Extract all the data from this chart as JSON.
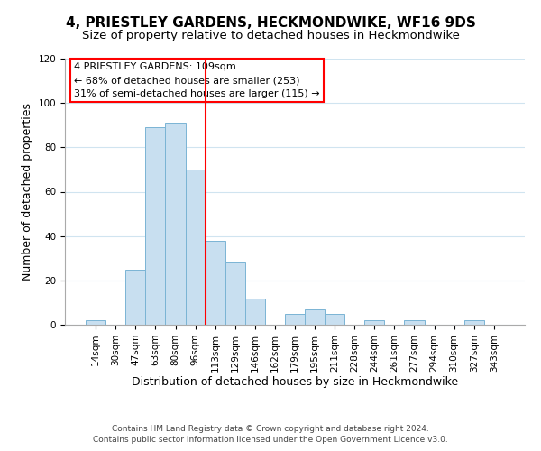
{
  "title": "4, PRIESTLEY GARDENS, HECKMONDWIKE, WF16 9DS",
  "subtitle": "Size of property relative to detached houses in Heckmondwike",
  "xlabel": "Distribution of detached houses by size in Heckmondwike",
  "ylabel": "Number of detached properties",
  "bar_labels": [
    "14sqm",
    "30sqm",
    "47sqm",
    "63sqm",
    "80sqm",
    "96sqm",
    "113sqm",
    "129sqm",
    "146sqm",
    "162sqm",
    "179sqm",
    "195sqm",
    "211sqm",
    "228sqm",
    "244sqm",
    "261sqm",
    "277sqm",
    "294sqm",
    "310sqm",
    "327sqm",
    "343sqm"
  ],
  "bar_values": [
    2,
    0,
    25,
    89,
    91,
    70,
    38,
    28,
    12,
    0,
    5,
    7,
    5,
    0,
    2,
    0,
    2,
    0,
    0,
    2,
    0
  ],
  "bar_color": "#c8dff0",
  "bar_edgecolor": "#7ab4d4",
  "highlight_index": 6,
  "ylim": [
    0,
    120
  ],
  "yticks": [
    0,
    20,
    40,
    60,
    80,
    100,
    120
  ],
  "annotation_title": "4 PRIESTLEY GARDENS: 109sqm",
  "annotation_line1": "← 68% of detached houses are smaller (253)",
  "annotation_line2": "31% of semi-detached houses are larger (115) →",
  "footer1": "Contains HM Land Registry data © Crown copyright and database right 2024.",
  "footer2": "Contains public sector information licensed under the Open Government Licence v3.0.",
  "title_fontsize": 11,
  "subtitle_fontsize": 9.5,
  "axis_label_fontsize": 9,
  "tick_fontsize": 7.5,
  "annotation_fontsize": 8,
  "footer_fontsize": 6.5,
  "background_color": "#ffffff",
  "grid_color": "#d0e4f0"
}
